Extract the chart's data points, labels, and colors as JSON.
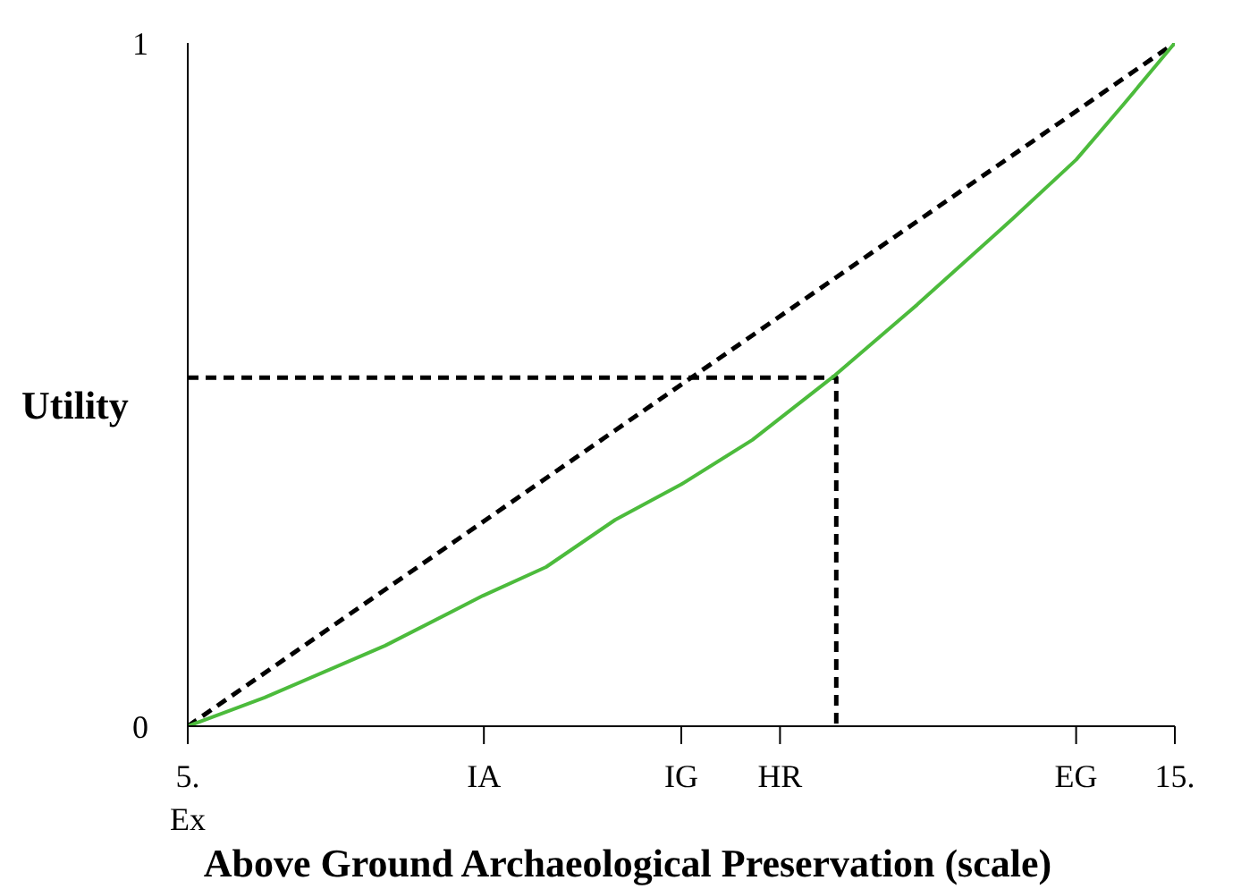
{
  "chart_data": {
    "type": "line",
    "xlabel": "Above Ground Archaeological Preservation (scale)",
    "ylabel": "Utility",
    "xlim": [
      5,
      15
    ],
    "ylim": [
      0,
      1
    ],
    "xticks": [
      {
        "value": 5,
        "label": "5.\nEx"
      },
      {
        "value": 8,
        "label": "IA"
      },
      {
        "value": 10,
        "label": "IG"
      },
      {
        "value": 11,
        "label": "HR"
      },
      {
        "value": 14,
        "label": "EG"
      },
      {
        "value": 15,
        "label": "15."
      }
    ],
    "yticks": [
      0,
      1
    ],
    "grid": false,
    "legend": false,
    "marker": "none",
    "series": [
      {
        "color": "#000000",
        "line_style": "dashed",
        "x": [
          5,
          15
        ],
        "values": [
          0,
          1
        ]
      },
      {
        "color": "#000000",
        "line_style": "dashed",
        "x": [
          5,
          11.57,
          11.57
        ],
        "values": [
          0.51,
          0.51,
          0
        ]
      },
      {
        "color": "#4cbb3c",
        "line_style": "solid",
        "x": [
          5,
          5.78,
          7.0,
          7.99,
          8.63,
          9.33,
          10.0,
          10.72,
          11.56,
          12.39,
          13.36,
          14.0,
          14.48,
          15
        ],
        "values": [
          0,
          0.042,
          0.118,
          0.191,
          0.233,
          0.302,
          0.354,
          0.419,
          0.514,
          0.617,
          0.743,
          0.829,
          0.91,
          1
        ]
      }
    ]
  }
}
